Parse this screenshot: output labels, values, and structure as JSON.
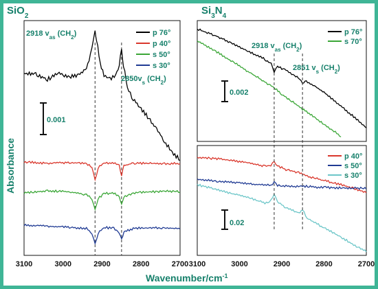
{
  "border_color": "#3fb596",
  "text_color": "#16806b",
  "y_axis_label": "Absorbance",
  "x_axis_label": "Wavenumber/cm-1",
  "chart_data": [
    {
      "type": "line",
      "title": "SiO2",
      "title_parts": {
        "base": "SiO",
        "sub": "2"
      },
      "xlabel": "Wavenumber/cm-1",
      "ylabel": "Absorbance",
      "x_reversed": true,
      "xlim": [
        3100,
        2700
      ],
      "xticks": [
        "3100",
        "3000",
        "2900",
        "2800",
        "2700"
      ],
      "scale_bar": "0.001",
      "annotations": [
        {
          "text": "2918 vas (CH2)",
          "parts": [
            "2918 v",
            "as",
            " (CH",
            "2",
            ")"
          ],
          "x": 2918
        },
        {
          "text": "2850vs (CH2)",
          "parts": [
            "2850v",
            "s",
            " (CH",
            "2",
            ")"
          ],
          "x": 2850
        }
      ],
      "series": [
        {
          "name": "p 76°",
          "color": "#000000",
          "x": [
            3100,
            3070,
            3040,
            3010,
            2980,
            2960,
            2940,
            2930,
            2922,
            2918,
            2914,
            2905,
            2895,
            2880,
            2865,
            2856,
            2850,
            2845,
            2835,
            2820,
            2800,
            2780,
            2760,
            2740,
            2720,
            2700
          ],
          "y": [
            0.0113,
            0.0112,
            0.0108,
            0.0113,
            0.011,
            0.0112,
            0.0118,
            0.0129,
            0.0143,
            0.0149,
            0.0142,
            0.0122,
            0.0112,
            0.0108,
            0.0111,
            0.0121,
            0.0133,
            0.012,
            0.01,
            0.009,
            0.0082,
            0.0074,
            0.0064,
            0.0054,
            0.0043,
            0.0038
          ]
        },
        {
          "name": "p 40°",
          "color": "#d9362b",
          "x": [
            3100,
            3040,
            2980,
            2940,
            2926,
            2918,
            2910,
            2895,
            2870,
            2856,
            2850,
            2844,
            2820,
            2780,
            2740,
            2700
          ],
          "y": [
            0.0036,
            0.0035,
            0.00355,
            0.00345,
            0.0032,
            0.002,
            0.0031,
            0.0035,
            0.0035,
            0.0033,
            0.0024,
            0.0033,
            0.0035,
            0.0035,
            0.00345,
            0.0035
          ]
        },
        {
          "name": "s 50°",
          "color": "#3aa636",
          "x": [
            3100,
            3040,
            2980,
            2940,
            2926,
            2918,
            2910,
            2895,
            2870,
            2856,
            2850,
            2844,
            2820,
            2780,
            2740,
            2700
          ],
          "y": [
            0.0009,
            0.0011,
            0.001,
            0.00075,
            0.0004,
            -0.0006,
            0.0004,
            0.00085,
            0.0009,
            0.0006,
            -0.0001,
            0.0006,
            0.0009,
            0.001,
            0.00105,
            0.001
          ]
        },
        {
          "name": "s 30°",
          "color": "#1f3a93",
          "x": [
            3100,
            3040,
            2980,
            2940,
            2926,
            2918,
            2910,
            2895,
            2870,
            2856,
            2850,
            2844,
            2820,
            2780,
            2740,
            2700
          ],
          "y": [
            -0.0019,
            -0.002,
            -0.0021,
            -0.0022,
            -0.0026,
            -0.0036,
            -0.0026,
            -0.0021,
            -0.0022,
            -0.0026,
            -0.0032,
            -0.0025,
            -0.0022,
            -0.00215,
            -0.00215,
            -0.0022
          ]
        }
      ],
      "ylim": [
        -0.0045,
        0.016
      ]
    },
    {
      "type": "line",
      "title": "Si3N4",
      "title_parts": {
        "a": "Si",
        "s1": "3",
        "b": "N",
        "s2": "4"
      },
      "xlabel": "Wavenumber/cm-1",
      "ylabel": "Absorbance",
      "x_reversed": true,
      "xlim": [
        3100,
        2700
      ],
      "scale_bar": "0.002",
      "annotations": [
        {
          "text": "2918 vas (CH2)",
          "parts": [
            "2918 v",
            "as",
            " (CH",
            "2",
            ")"
          ],
          "x": 2918
        },
        {
          "text": "2851 vs (CH2)",
          "parts": [
            "2851 v",
            "s",
            " (CH",
            "2",
            ")"
          ],
          "x": 2851
        }
      ],
      "series": [
        {
          "name": "p 76°",
          "color": "#000000",
          "x": [
            3100,
            3060,
            3020,
            2980,
            2940,
            2925,
            2918,
            2910,
            2890,
            2870,
            2858,
            2851,
            2845,
            2820,
            2790,
            2760,
            2730,
            2700
          ],
          "y": [
            0.0059,
            0.0055,
            0.005,
            0.00445,
            0.0039,
            0.0036,
            0.0031,
            0.0034,
            0.0032,
            0.0028,
            0.00265,
            0.00225,
            0.0025,
            0.0021,
            0.0015,
            0.0008,
            0.0001,
            -0.0006
          ]
        },
        {
          "name": "s 70°",
          "color": "#3aa636",
          "x": [
            3100,
            3060,
            3020,
            2980,
            2940,
            2918,
            2900,
            2860,
            2851,
            2820,
            2800,
            2780,
            2760
          ],
          "y": [
            0.0051,
            0.0045,
            0.0038,
            0.0031,
            0.0024,
            0.002,
            0.0016,
            0.0008,
            0.0006,
            0.0,
            -0.0004,
            -0.0008,
            -0.0012
          ]
        }
      ],
      "ylim": [
        -0.0015,
        0.0065
      ]
    },
    {
      "type": "line",
      "xlabel": "Wavenumber/cm-1",
      "ylabel": "Absorbance",
      "x_reversed": true,
      "xlim": [
        3100,
        2700
      ],
      "xticks": [
        "3100",
        "3000",
        "2900",
        "2800",
        "2700"
      ],
      "scale_bar": "0.02",
      "series": [
        {
          "name": "p 40°",
          "color": "#d9362b",
          "x": [
            3100,
            3060,
            3020,
            2980,
            2940,
            2926,
            2918,
            2910,
            2890,
            2860,
            2851,
            2840,
            2800,
            2760,
            2720,
            2700
          ],
          "y": [
            0.07,
            0.069,
            0.067,
            0.064,
            0.06,
            0.061,
            0.065,
            0.06,
            0.056,
            0.052,
            0.051,
            0.048,
            0.043,
            0.038,
            0.032,
            0.029
          ]
        },
        {
          "name": "s 50°",
          "color": "#1f3a93",
          "x": [
            3100,
            3050,
            3000,
            2950,
            2926,
            2918,
            2910,
            2870,
            2851,
            2820,
            2780,
            2740,
            2700
          ],
          "y": [
            0.044,
            0.042,
            0.04,
            0.038,
            0.0375,
            0.0405,
            0.0372,
            0.036,
            0.0365,
            0.035,
            0.0345,
            0.034,
            0.0335
          ]
        },
        {
          "name": "s 30°",
          "color": "#6cc6c8",
          "x": [
            3100,
            3060,
            3020,
            2980,
            2940,
            2926,
            2918,
            2910,
            2890,
            2860,
            2851,
            2840,
            2800,
            2760,
            2720,
            2700
          ],
          "y": [
            0.038,
            0.033,
            0.028,
            0.023,
            0.016,
            0.019,
            0.027,
            0.017,
            0.011,
            0.004,
            0.009,
            -0.002,
            -0.013,
            -0.024,
            -0.036,
            -0.041
          ]
        }
      ],
      "ylim": [
        -0.045,
        0.085
      ]
    }
  ]
}
